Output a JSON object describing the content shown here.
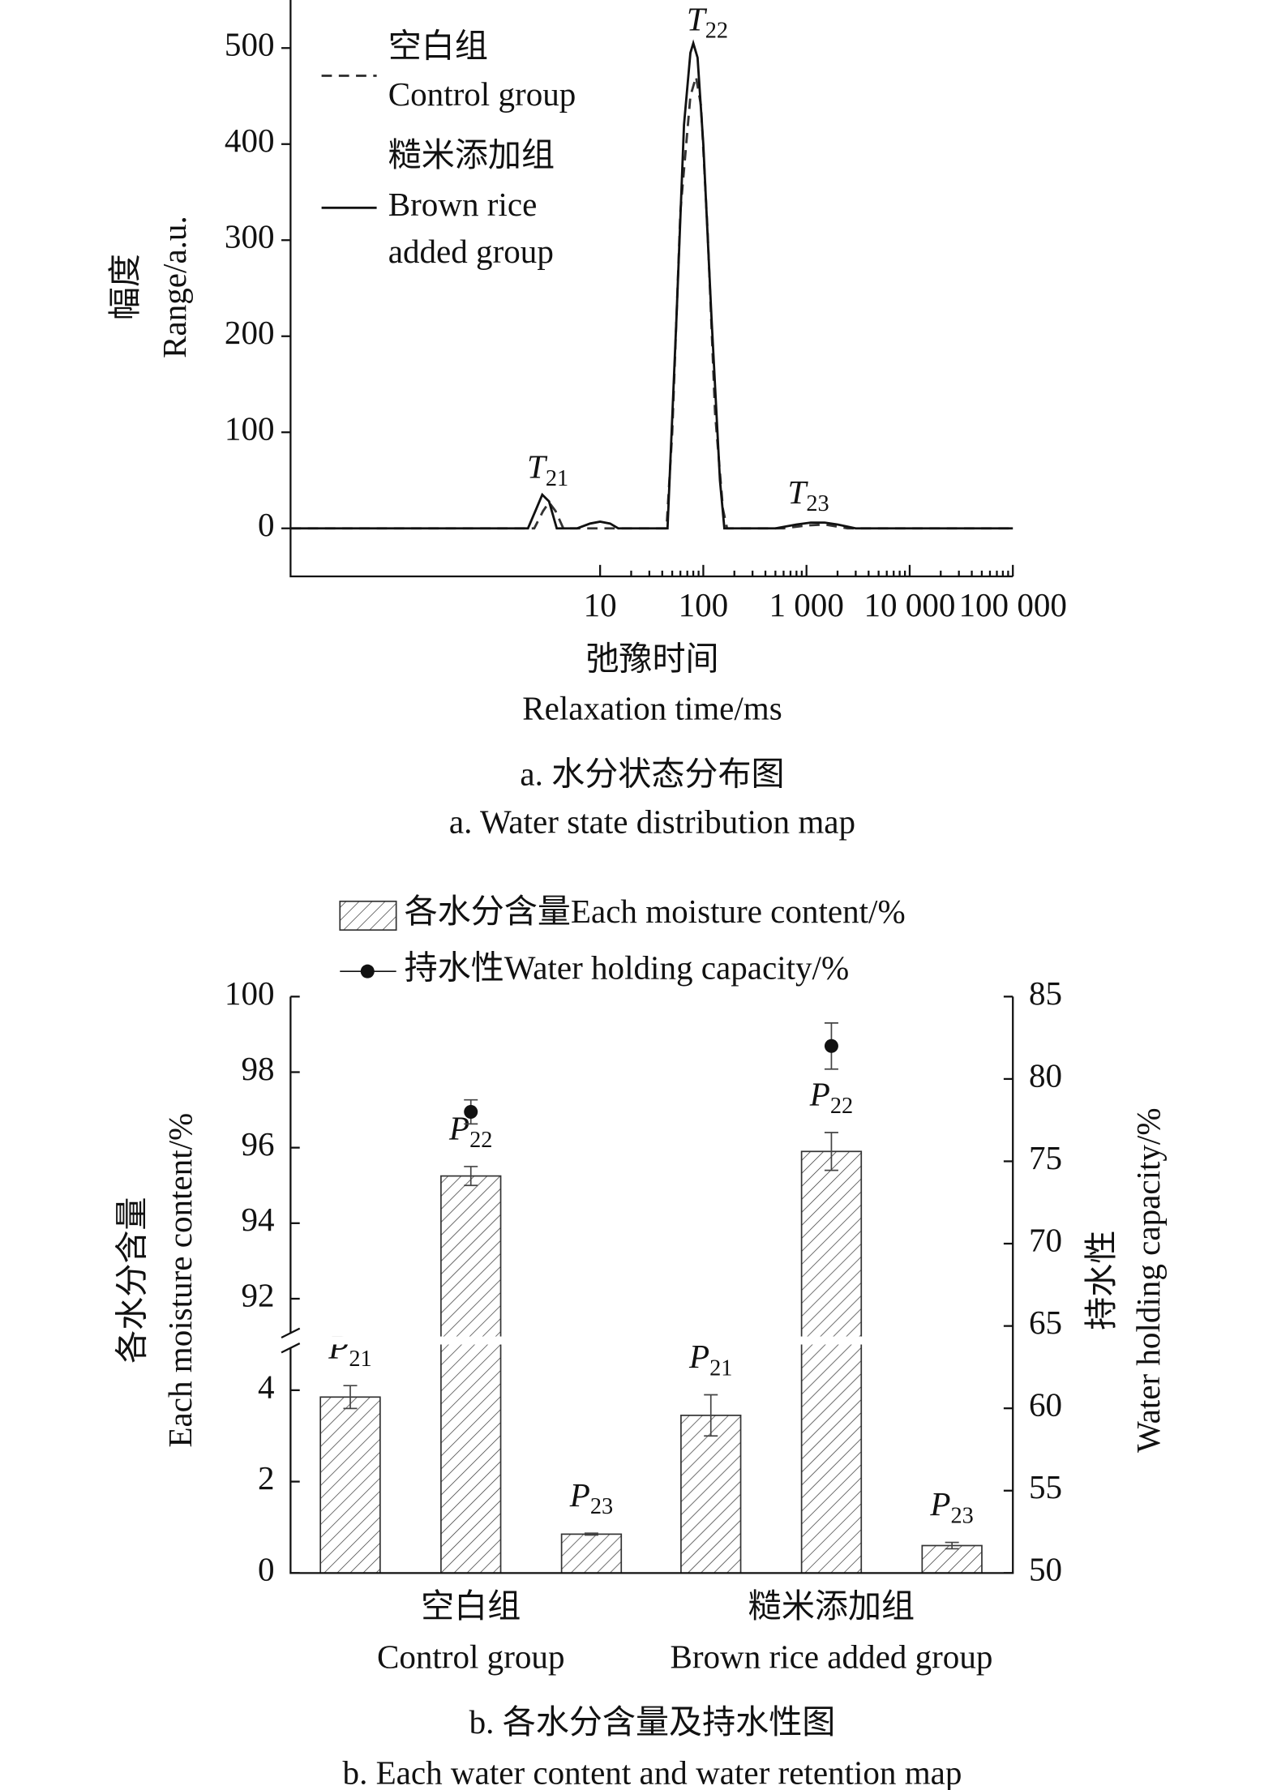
{
  "chart_data": [
    {
      "type": "line",
      "xscale": "log",
      "xlim": [
        0.01,
        100000
      ],
      "xticks": [
        10,
        100,
        {
          "value": 1000,
          "label": "1 000"
        },
        {
          "value": 10000,
          "label": "10 000"
        },
        {
          "value": 100000,
          "label": "100 000"
        }
      ],
      "ylim": [
        -50,
        550
      ],
      "yticks": [
        0,
        100,
        200,
        300,
        400,
        500
      ],
      "xlabel": [
        "弛豫时间",
        "Relaxation time/ms"
      ],
      "ylabel": [
        "幅度",
        "Range/a.u."
      ],
      "caption": [
        "a. 水分状态分布图",
        "a. Water state distribution map"
      ],
      "annotations": [
        {
          "text": "T",
          "sub": "22"
        },
        {
          "text": "T",
          "sub": "21"
        },
        {
          "text": "T",
          "sub": "23"
        }
      ],
      "series": [
        {
          "name": [
            "空白组",
            "Control group"
          ],
          "color": "#333",
          "dash": true,
          "x": [
            0.01,
            2.3,
            2.8,
            3.2,
            3.7,
            4.4,
            44,
            50,
            60,
            75,
            85,
            95,
            110,
            130,
            155,
            170,
            600,
            1000,
            1500,
            2500,
            100000
          ],
          "values": [
            0,
            0,
            18,
            27,
            18,
            0,
            0,
            100,
            330,
            450,
            470,
            440,
            310,
            120,
            20,
            0,
            0,
            3,
            4,
            0,
            0
          ]
        },
        {
          "name": [
            "糙米添加组",
            "Brown rice",
            "added group"
          ],
          "color": "#111",
          "dash": false,
          "x": [
            0.01,
            2.0,
            2.4,
            2.75,
            3.2,
            3.8,
            6,
            8,
            10,
            12.5,
            15,
            45,
            55,
            65,
            75,
            80,
            88,
            100,
            120,
            145,
            160,
            500,
            800,
            1100,
            1500,
            2000,
            3000,
            100000
          ],
          "values": [
            0,
            0,
            20,
            35,
            28,
            0,
            0,
            5,
            7,
            5,
            0,
            0,
            220,
            420,
            495,
            505,
            490,
            400,
            220,
            50,
            0,
            0,
            4,
            6,
            6,
            4,
            0,
            0
          ]
        }
      ]
    },
    {
      "type": "bar",
      "categories": [
        [
          "空白组",
          "Control group"
        ],
        [
          "糙米添加组",
          "Brown rice added group"
        ]
      ],
      "ylim": [
        0,
        100
      ],
      "ybreak": [
        5,
        91
      ],
      "yticks": [
        0,
        2,
        4,
        92,
        94,
        96,
        98,
        100
      ],
      "y2lim": [
        50,
        85
      ],
      "y2ticks": [
        50,
        55,
        60,
        65,
        70,
        75,
        80,
        85
      ],
      "ylabel": [
        "各水分含量",
        "Each moisture content/%"
      ],
      "y2label": [
        "持水性",
        "Water holding capacity/%"
      ],
      "caption": [
        "b. 各水分含量及持水性图",
        "b. Each water content and water retention map"
      ],
      "series": [
        {
          "name": "各水分含量Each moisture content/%",
          "color": "#333",
          "hatch": true,
          "components": [
            {
              "label": "P",
              "sub": "21",
              "values": [
                3.85,
                3.45
              ],
              "errors": [
                0.25,
                0.45
              ]
            },
            {
              "label": "P",
              "sub": "22",
              "values": [
                95.25,
                95.9
              ],
              "errors": [
                0.25,
                0.5
              ]
            },
            {
              "label": "P",
              "sub": "23",
              "values": [
                0.85,
                0.6
              ],
              "errors": [
                0.02,
                0.07
              ]
            }
          ]
        },
        {
          "name": "持水性Water holding capacity/%",
          "type": "scatter",
          "axis": "y2",
          "color": "#111",
          "values": [
            78,
            82
          ],
          "errors": [
            0.73,
            1.4
          ]
        }
      ]
    }
  ]
}
